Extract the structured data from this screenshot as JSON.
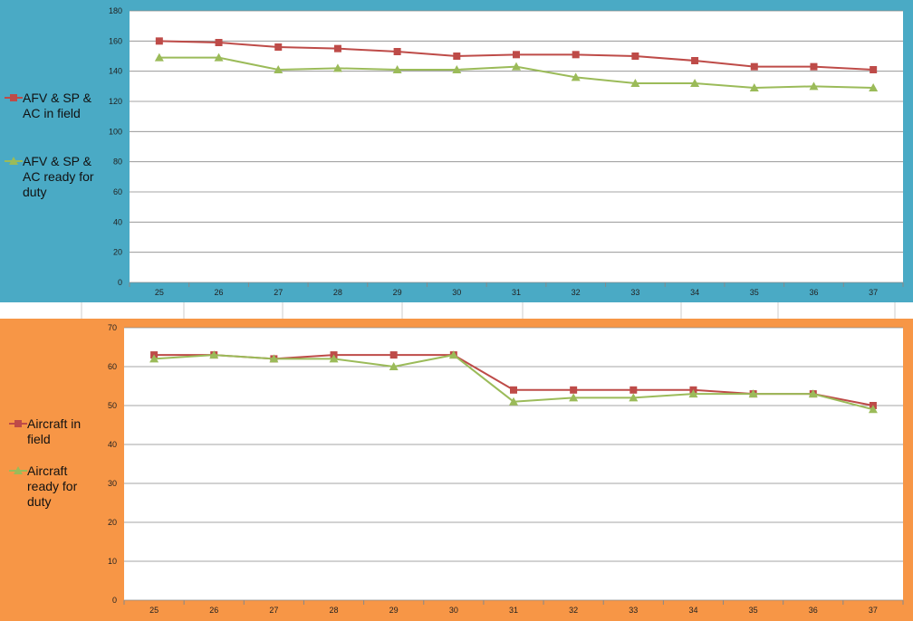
{
  "chart_data": [
    {
      "type": "line",
      "categories": [
        "25",
        "26",
        "27",
        "28",
        "29",
        "30",
        "31",
        "32",
        "33",
        "34",
        "35",
        "36",
        "37"
      ],
      "series": [
        {
          "name": "AFV & SP & AC in field",
          "color": "#be4b48",
          "marker": "square",
          "values": [
            160,
            159,
            156,
            155,
            153,
            150,
            151,
            151,
            150,
            147,
            143,
            143,
            141
          ]
        },
        {
          "name": "AFV & SP & AC ready for duty",
          "color": "#9bbb59",
          "marker": "triangle",
          "values": [
            149,
            149,
            141,
            142,
            141,
            141,
            143,
            136,
            132,
            132,
            129,
            130,
            129
          ]
        }
      ],
      "ylim": [
        0,
        180
      ],
      "yticks": [
        0,
        20,
        40,
        60,
        80,
        100,
        120,
        140,
        160,
        180
      ],
      "grid": true,
      "legend": "left"
    },
    {
      "type": "line",
      "categories": [
        "25",
        "26",
        "27",
        "28",
        "29",
        "30",
        "31",
        "32",
        "33",
        "34",
        "35",
        "36",
        "37"
      ],
      "series": [
        {
          "name": "Aircraft in field",
          "color": "#be4b48",
          "marker": "square",
          "values": [
            63,
            63,
            62,
            63,
            63,
            63,
            54,
            54,
            54,
            54,
            53,
            53,
            50
          ]
        },
        {
          "name": "Aircraft ready for duty",
          "color": "#9bbb59",
          "marker": "triangle",
          "values": [
            62,
            63,
            62,
            62,
            60,
            63,
            51,
            52,
            52,
            53,
            53,
            53,
            49
          ]
        }
      ],
      "ylim": [
        0,
        70
      ],
      "yticks": [
        0,
        10,
        20,
        30,
        40,
        50,
        60,
        70
      ],
      "grid": true,
      "legend": "left"
    }
  ]
}
